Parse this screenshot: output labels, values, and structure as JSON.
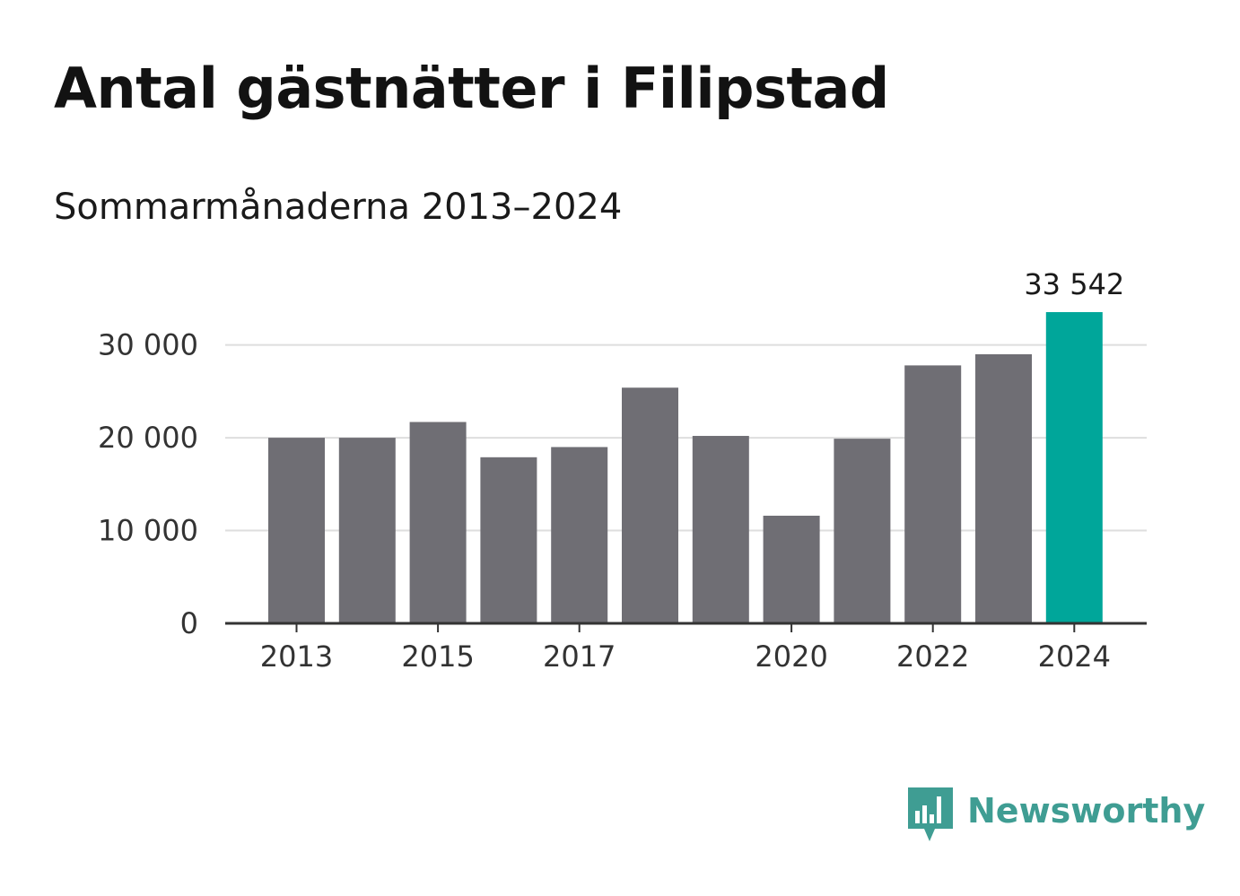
{
  "title": "Antal gästnätter i Filipstad",
  "subtitle": "Sommarmånaderna 2013–2024",
  "brand": {
    "name": "Newsworthy",
    "icon": "newsworthy-chart-bubble-icon",
    "color": "#3f9d93"
  },
  "colors": {
    "bar": "#6f6e74",
    "highlight": "#00a69a",
    "grid": "#dedede",
    "axis": "#333333"
  },
  "chart_data": {
    "type": "bar",
    "title": "Antal gästnätter i Filipstad",
    "subtitle": "Sommarmånaderna 2013–2024",
    "categories": [
      "2013",
      "2014",
      "2015",
      "2016",
      "2017",
      "2018",
      "2019",
      "2020",
      "2021",
      "2022",
      "2023",
      "2024"
    ],
    "values": [
      20000,
      20000,
      21700,
      17900,
      19000,
      25400,
      20200,
      11600,
      19900,
      27800,
      29000,
      33542
    ],
    "highlight_index": 11,
    "data_labels": [
      {
        "index": 11,
        "text": "33 542"
      }
    ],
    "ylim": [
      0,
      33542
    ],
    "yticks": [
      0,
      10000,
      20000,
      30000
    ],
    "ytick_labels": [
      "0",
      "10 000",
      "20 000",
      "30 000"
    ],
    "xtick_labels": [
      "2013",
      "2015",
      "2017",
      "2020",
      "2022",
      "2024"
    ],
    "xlabel": "",
    "ylabel": "",
    "grid": true,
    "legend": false
  }
}
